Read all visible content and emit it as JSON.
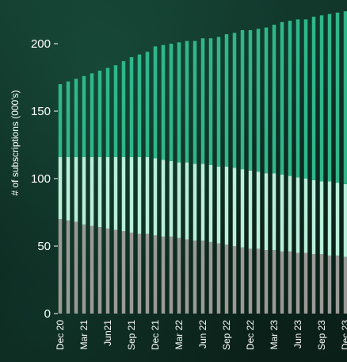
{
  "chart_data": {
    "type": "bar",
    "stacked": true,
    "ylabel": "# of subscriptions (000's)",
    "xlabel": "",
    "title": "",
    "ylim": [
      0,
      225
    ],
    "y_ticks": [
      0,
      50,
      100,
      150,
      200
    ],
    "grid": false,
    "legend": "none",
    "categories": [
      "Dec 20",
      "Jan 21",
      "Feb 21",
      "Mar 21",
      "Apr 21",
      "May 21",
      "Jun 21",
      "Jul 21",
      "Aug 21",
      "Sep 21",
      "Oct 21",
      "Nov 21",
      "Dec 21",
      "Jan 22",
      "Feb 22",
      "Mar 22",
      "Apr 22",
      "May 22",
      "Jun 22",
      "Jul 22",
      "Aug 22",
      "Sep 22",
      "Oct 22",
      "Nov 22",
      "Dec 22",
      "Jan 23",
      "Feb 23",
      "Mar 23",
      "Apr 23",
      "May 23",
      "Jun 23",
      "Jul 23",
      "Aug 23",
      "Sep 23",
      "Oct 23",
      "Nov 23",
      "Dec 23"
    ],
    "x_tick_labels": [
      "Dec 20",
      "Mar 21",
      "Jun21",
      "Sep 21",
      "Dec 21",
      "Mar 22",
      "Jun 22",
      "Sep 22",
      "Dec 22",
      "Mar 23",
      "Jun 23",
      "Sep 23",
      "Dec 23"
    ],
    "series": [
      {
        "color": "#9a9a96",
        "values": [
          70,
          69,
          68,
          66,
          65,
          64,
          63,
          62,
          61,
          60,
          59,
          59,
          58,
          57,
          57,
          56,
          55,
          54,
          54,
          53,
          52,
          51,
          50,
          49,
          48,
          48,
          47,
          47,
          46,
          46,
          45,
          45,
          44,
          44,
          43,
          43,
          42
        ]
      },
      {
        "color": "#b9efd9",
        "values": [
          46,
          47,
          48,
          50,
          51,
          52,
          53,
          54,
          55,
          56,
          57,
          57,
          57,
          57,
          56,
          56,
          57,
          57,
          57,
          57,
          57,
          58,
          58,
          58,
          58,
          57,
          57,
          57,
          57,
          56,
          56,
          55,
          55,
          54,
          55,
          54,
          54
        ]
      },
      {
        "color": "#2fb78a",
        "values": [
          54,
          56,
          58,
          60,
          62,
          64,
          66,
          68,
          71,
          74,
          76,
          78,
          83,
          85,
          87,
          89,
          90,
          91,
          93,
          94,
          96,
          98,
          100,
          103,
          104,
          106,
          108,
          110,
          113,
          115,
          117,
          118,
          121,
          123,
          124,
          126,
          128
        ]
      }
    ]
  }
}
